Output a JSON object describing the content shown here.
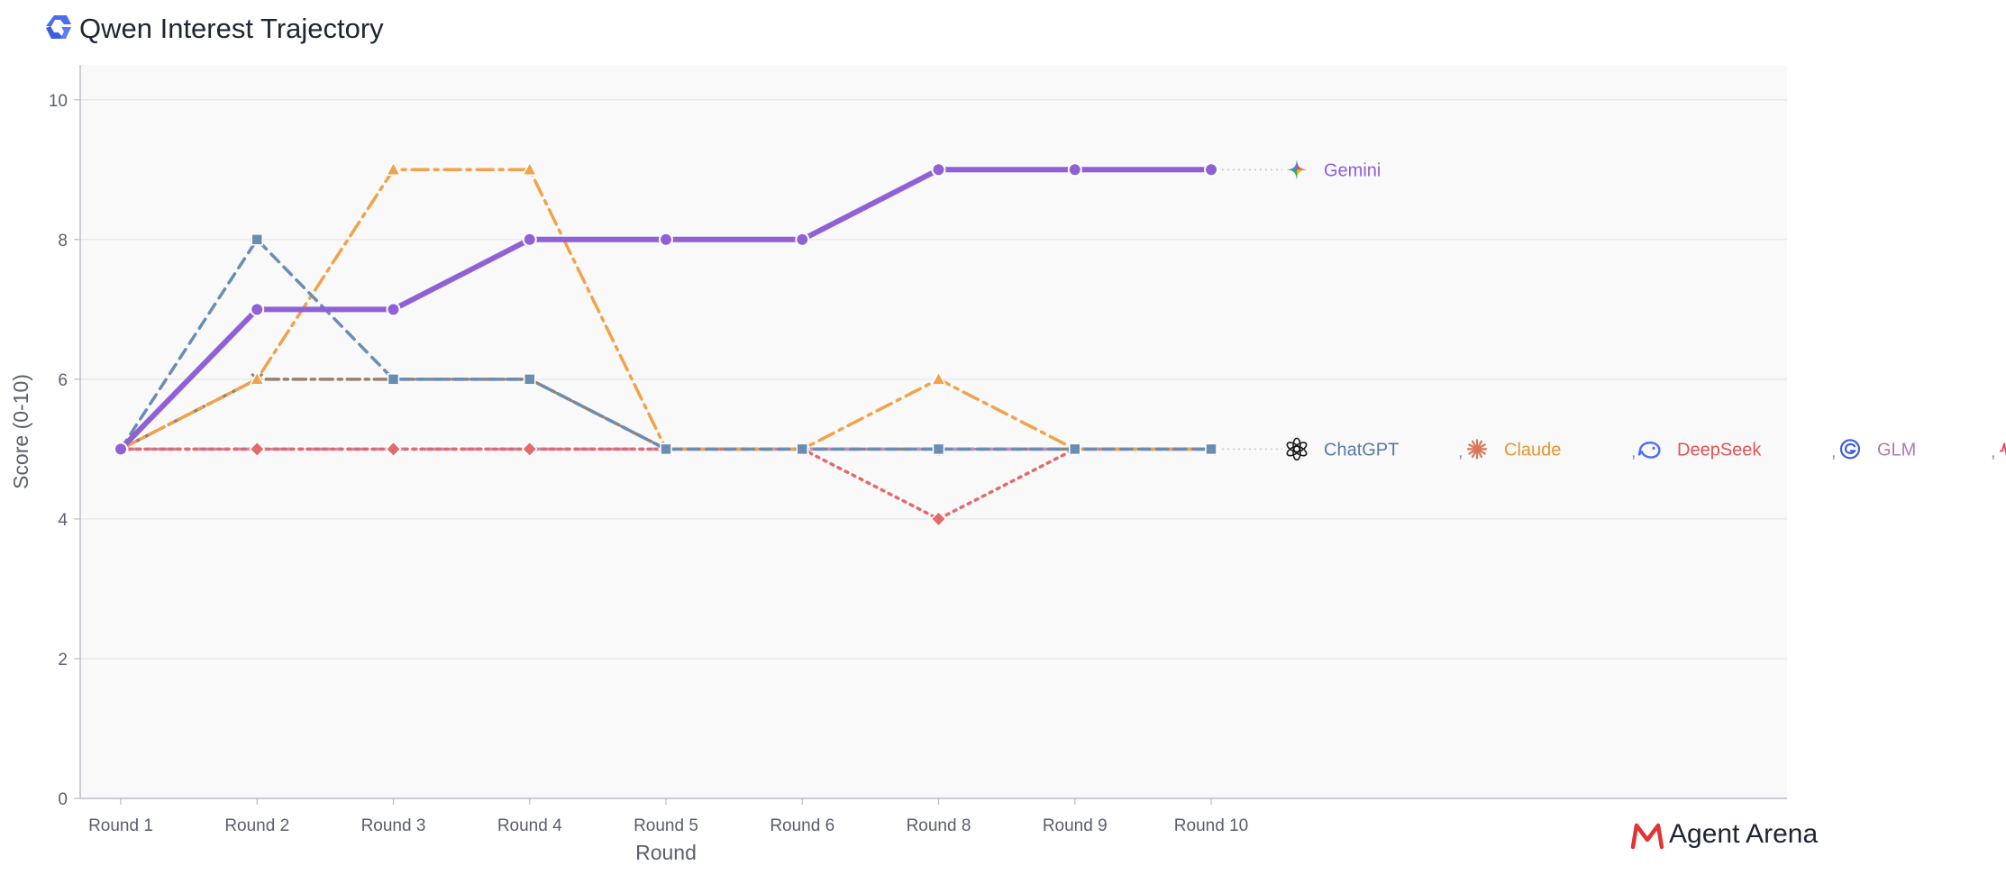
{
  "brand": {
    "name": "Agent Arena",
    "color": "#e03535"
  },
  "chart_data": {
    "type": "line",
    "title": "Qwen Interest Trajectory",
    "title_icon": "qwen-logo-icon",
    "xlabel": "Round",
    "ylabel": "Score (0-10)",
    "ylim": [
      0,
      10.5
    ],
    "yticks": [
      0,
      2,
      4,
      6,
      8,
      10
    ],
    "grid": true,
    "categories": [
      "Round 1",
      "Round 2",
      "Round 3",
      "Round 4",
      "Round 5",
      "Round 6",
      "Round 8",
      "Round 9",
      "Round 10"
    ],
    "series": [
      {
        "name": "Gemini",
        "color": "#9060d6",
        "values": [
          5,
          7,
          7,
          8,
          8,
          8,
          9,
          9,
          9
        ],
        "dash": "",
        "width": 6,
        "marker": "circle",
        "icon": "gemini-sparkle-icon",
        "label_color": "#9060d6"
      },
      {
        "name": "ChatGPT",
        "color": "#6a8db3",
        "values": [
          5,
          8,
          6,
          6,
          5,
          5,
          5,
          5,
          5
        ],
        "dash": "12 8",
        "width": 3.5,
        "marker": "square",
        "icon": "openai-knot-icon",
        "label_color": "#5a7aa0"
      },
      {
        "name": "Claude",
        "color": "#f0a34a",
        "values": [
          5,
          6,
          9,
          9,
          5,
          5,
          6,
          5,
          5
        ],
        "dash": "18 7 4 7",
        "width": 3.5,
        "marker": "triangle",
        "icon": "claude-burst-icon",
        "label_color": "#e8952f"
      },
      {
        "name": "DeepSeek",
        "color": "#e36a6a",
        "values": [
          5,
          5,
          5,
          5,
          5,
          5,
          4,
          5,
          5
        ],
        "dash": "3 6",
        "width": 3.5,
        "marker": "diamond",
        "icon": "deepseek-whale-icon",
        "label_color": "#e05555"
      },
      {
        "name": "GLM",
        "color": "#c48bc0",
        "values": [
          5,
          5,
          5,
          5,
          5,
          5,
          5,
          5,
          5
        ],
        "dash": "22 8 4 8",
        "width": 3.5,
        "marker": "plus",
        "icon": "glm-spiral-icon",
        "label_color": "#b07ab0"
      },
      {
        "name": "MiniMax",
        "color": "#9a8070",
        "values": [
          5,
          6,
          6,
          6,
          5,
          5,
          5,
          5,
          5
        ],
        "dash": "14 6 4 6",
        "width": 3.5,
        "marker": "x",
        "icon": "minimax-wave-icon",
        "label_color": "#a07a60"
      }
    ],
    "legend": {
      "placement": "right",
      "groups": [
        {
          "y": 9,
          "names": [
            "Gemini"
          ]
        },
        {
          "y": 5,
          "names": [
            "ChatGPT",
            "Claude",
            "DeepSeek",
            "GLM",
            "MiniMax"
          ]
        }
      ],
      "separator": ","
    }
  }
}
